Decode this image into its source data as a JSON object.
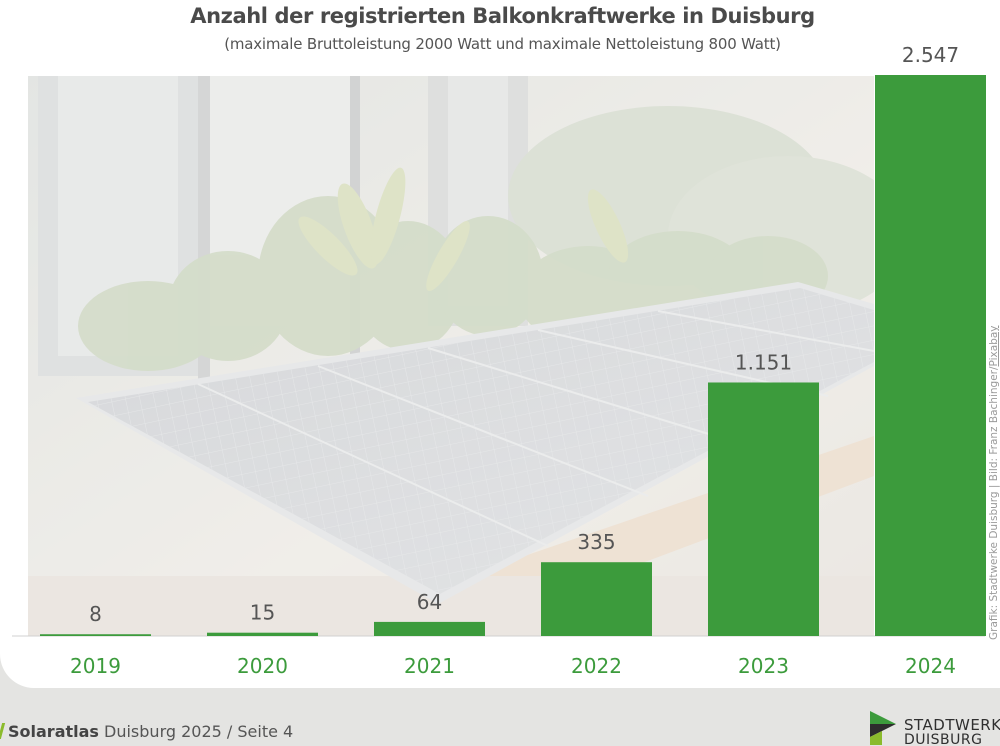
{
  "chart_data": {
    "type": "bar",
    "title": "Anzahl der registrierten Balkonkraftwerke in Duisburg",
    "subtitle": "(maximale Bruttoleistung 2000 Watt und maximale Nettoleistung 800 Watt)",
    "categories": [
      "2019",
      "2020",
      "2021",
      "2022",
      "2023",
      "2024"
    ],
    "values": [
      8,
      15,
      64,
      335,
      1151,
      2547
    ],
    "value_labels": [
      "8",
      "15",
      "64",
      "335",
      "1.151",
      "2.547"
    ],
    "ylim": [
      0,
      2547
    ],
    "grid": false,
    "legend": "none",
    "bar_color": "#3c9b3c",
    "category_label_color": "#3c9b3c"
  },
  "photo_credit": {
    "text": "Grafik: Stadtwerke Duisburg | Bild: Franz Bachinger/",
    "source": "Pixabay"
  },
  "footer": {
    "brand_bold": "Solaratlas",
    "brand_rest": " Duisburg 2025",
    "page": " / Seite 4"
  },
  "logo": {
    "line1": "STADTWERKE",
    "line2": "DUISBURG",
    "colors": [
      "#3c9b3c",
      "#2d2d2d",
      "#8bbb2c"
    ]
  }
}
